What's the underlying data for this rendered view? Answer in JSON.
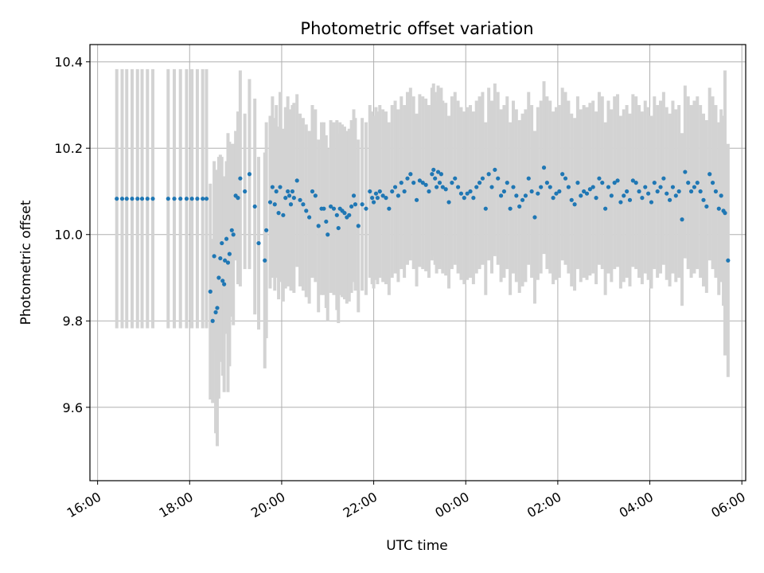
{
  "chart_data": {
    "type": "scatter",
    "title": "Photometric offset variation",
    "xlabel": "UTC time",
    "ylabel": "Photometric offset",
    "x_ticks": [
      "16:00",
      "18:00",
      "20:00",
      "22:00",
      "00:00",
      "02:00",
      "04:00",
      "06:00"
    ],
    "y_ticks": [
      "9.6",
      "9.8",
      "10.0",
      "10.2",
      "10.4"
    ],
    "x_range": [
      "15:50",
      "06:05"
    ],
    "ylim": [
      9.43,
      10.44
    ],
    "grid": true,
    "marker_color": "#1f77b4",
    "errorbar_color": "#d3d3d3",
    "points": [
      [
        "16:25",
        10.083,
        0.3
      ],
      [
        "16:32",
        10.083,
        0.3
      ],
      [
        "16:38",
        10.083,
        0.3
      ],
      [
        "16:45",
        10.083,
        0.3
      ],
      [
        "16:52",
        10.083,
        0.3
      ],
      [
        "16:58",
        10.083,
        0.3
      ],
      [
        "17:05",
        10.083,
        0.3
      ],
      [
        "17:12",
        10.083,
        0.3
      ],
      [
        "17:32",
        10.083,
        0.3
      ],
      [
        "17:40",
        10.083,
        0.3
      ],
      [
        "17:48",
        10.083,
        0.3
      ],
      [
        "17:56",
        10.083,
        0.3
      ],
      [
        "18:03",
        10.083,
        0.3
      ],
      [
        "18:10",
        10.083,
        0.3
      ],
      [
        "18:17",
        10.083,
        0.3
      ],
      [
        "18:22",
        10.083,
        0.3
      ],
      [
        "18:27",
        9.868,
        0.25
      ],
      [
        "18:30",
        9.8,
        0.19
      ],
      [
        "18:32",
        9.95,
        0.22
      ],
      [
        "18:34",
        9.82,
        0.28
      ],
      [
        "18:36",
        9.83,
        0.32
      ],
      [
        "18:38",
        9.9,
        0.28
      ],
      [
        "18:40",
        9.945,
        0.24
      ],
      [
        "18:42",
        9.98,
        0.2
      ],
      [
        "18:43",
        9.893,
        0.22
      ],
      [
        "18:45",
        9.885,
        0.25
      ],
      [
        "18:46",
        9.94,
        0.17
      ],
      [
        "18:48",
        9.99,
        0.18
      ],
      [
        "18:50",
        9.935,
        0.3
      ],
      [
        "18:52",
        9.955,
        0.26
      ],
      [
        "18:55",
        10.01,
        0.2
      ],
      [
        "18:57",
        10.0,
        0.21
      ],
      [
        "19:00",
        10.09,
        0.15
      ],
      [
        "19:03",
        10.085,
        0.2
      ],
      [
        "19:06",
        10.13,
        0.25
      ],
      [
        "19:12",
        10.1,
        0.18
      ],
      [
        "19:18",
        10.14,
        0.22
      ],
      [
        "19:25",
        10.065,
        0.25
      ],
      [
        "19:30",
        9.98,
        0.2
      ],
      [
        "19:38",
        9.94,
        0.25
      ],
      [
        "19:40",
        10.01,
        0.25
      ],
      [
        "19:45",
        10.075,
        0.2
      ],
      [
        "19:48",
        10.11,
        0.21
      ],
      [
        "19:51",
        10.07,
        0.2
      ],
      [
        "19:53",
        10.1,
        0.2
      ],
      [
        "19:56",
        10.05,
        0.2
      ],
      [
        "19:58",
        10.11,
        0.22
      ],
      [
        "20:02",
        10.045,
        0.2
      ],
      [
        "20:05",
        10.085,
        0.21
      ],
      [
        "20:08",
        10.1,
        0.22
      ],
      [
        "20:10",
        10.09,
        0.2
      ],
      [
        "20:12",
        10.07,
        0.2
      ],
      [
        "20:14",
        10.1,
        0.2
      ],
      [
        "20:16",
        10.085,
        0.22
      ],
      [
        "20:20",
        10.125,
        0.2
      ],
      [
        "20:24",
        10.08,
        0.2
      ],
      [
        "20:28",
        10.07,
        0.2
      ],
      [
        "20:32",
        10.055,
        0.2
      ],
      [
        "20:36",
        10.04,
        0.2
      ],
      [
        "20:40",
        10.1,
        0.2
      ],
      [
        "20:44",
        10.09,
        0.2
      ],
      [
        "20:48",
        10.02,
        0.2
      ],
      [
        "20:52",
        10.06,
        0.2
      ],
      [
        "20:55",
        10.06,
        0.2
      ],
      [
        "20:58",
        10.03,
        0.2
      ],
      [
        "21:00",
        10.0,
        0.2
      ],
      [
        "21:04",
        10.065,
        0.2
      ],
      [
        "21:08",
        10.06,
        0.2
      ],
      [
        "21:12",
        10.045,
        0.22
      ],
      [
        "21:14",
        10.015,
        0.22
      ],
      [
        "21:16",
        10.06,
        0.2
      ],
      [
        "21:19",
        10.055,
        0.2
      ],
      [
        "21:22",
        10.05,
        0.2
      ],
      [
        "21:25",
        10.04,
        0.2
      ],
      [
        "21:28",
        10.045,
        0.2
      ],
      [
        "21:31",
        10.065,
        0.2
      ],
      [
        "21:34",
        10.09,
        0.2
      ],
      [
        "21:36",
        10.07,
        0.2
      ],
      [
        "21:40",
        10.02,
        0.2
      ],
      [
        "21:45",
        10.07,
        0.2
      ],
      [
        "21:50",
        10.06,
        0.2
      ],
      [
        "21:55",
        10.1,
        0.2
      ],
      [
        "21:58",
        10.085,
        0.2
      ],
      [
        "22:00",
        10.075,
        0.2
      ],
      [
        "22:03",
        10.095,
        0.2
      ],
      [
        "22:05",
        10.085,
        0.2
      ],
      [
        "22:08",
        10.1,
        0.2
      ],
      [
        "22:12",
        10.09,
        0.2
      ],
      [
        "22:16",
        10.085,
        0.2
      ],
      [
        "22:20",
        10.06,
        0.2
      ],
      [
        "22:24",
        10.1,
        0.2
      ],
      [
        "22:28",
        10.11,
        0.2
      ],
      [
        "22:32",
        10.09,
        0.2
      ],
      [
        "22:36",
        10.12,
        0.2
      ],
      [
        "22:40",
        10.1,
        0.2
      ],
      [
        "22:44",
        10.13,
        0.2
      ],
      [
        "22:48",
        10.14,
        0.2
      ],
      [
        "22:52",
        10.12,
        0.2
      ],
      [
        "22:56",
        10.08,
        0.2
      ],
      [
        "23:00",
        10.125,
        0.2
      ],
      [
        "23:04",
        10.12,
        0.2
      ],
      [
        "23:08",
        10.115,
        0.2
      ],
      [
        "23:12",
        10.1,
        0.2
      ],
      [
        "23:16",
        10.14,
        0.2
      ],
      [
        "23:18",
        10.15,
        0.2
      ],
      [
        "23:20",
        10.13,
        0.2
      ],
      [
        "23:22",
        10.11,
        0.2
      ],
      [
        "23:24",
        10.145,
        0.2
      ],
      [
        "23:26",
        10.12,
        0.2
      ],
      [
        "23:28",
        10.14,
        0.2
      ],
      [
        "23:30",
        10.11,
        0.2
      ],
      [
        "23:34",
        10.105,
        0.2
      ],
      [
        "23:38",
        10.075,
        0.2
      ],
      [
        "23:42",
        10.12,
        0.2
      ],
      [
        "23:46",
        10.13,
        0.2
      ],
      [
        "23:50",
        10.11,
        0.2
      ],
      [
        "23:54",
        10.095,
        0.2
      ],
      [
        "23:58",
        10.085,
        0.2
      ],
      [
        "00:02",
        10.095,
        0.2
      ],
      [
        "00:06",
        10.1,
        0.2
      ],
      [
        "00:10",
        10.085,
        0.2
      ],
      [
        "00:14",
        10.11,
        0.2
      ],
      [
        "00:18",
        10.12,
        0.2
      ],
      [
        "00:22",
        10.13,
        0.2
      ],
      [
        "00:26",
        10.06,
        0.2
      ],
      [
        "00:30",
        10.14,
        0.2
      ],
      [
        "00:34",
        10.11,
        0.2
      ],
      [
        "00:38",
        10.15,
        0.2
      ],
      [
        "00:42",
        10.13,
        0.2
      ],
      [
        "00:46",
        10.09,
        0.2
      ],
      [
        "00:50",
        10.1,
        0.2
      ],
      [
        "00:54",
        10.12,
        0.2
      ],
      [
        "00:58",
        10.06,
        0.2
      ],
      [
        "01:02",
        10.11,
        0.2
      ],
      [
        "01:06",
        10.09,
        0.2
      ],
      [
        "01:10",
        10.065,
        0.2
      ],
      [
        "01:14",
        10.08,
        0.2
      ],
      [
        "01:18",
        10.09,
        0.2
      ],
      [
        "01:22",
        10.13,
        0.2
      ],
      [
        "01:26",
        10.1,
        0.2
      ],
      [
        "01:30",
        10.04,
        0.2
      ],
      [
        "01:34",
        10.095,
        0.2
      ],
      [
        "01:38",
        10.11,
        0.2
      ],
      [
        "01:42",
        10.155,
        0.2
      ],
      [
        "01:46",
        10.12,
        0.2
      ],
      [
        "01:50",
        10.11,
        0.2
      ],
      [
        "01:54",
        10.085,
        0.2
      ],
      [
        "01:58",
        10.095,
        0.2
      ],
      [
        "02:02",
        10.1,
        0.2
      ],
      [
        "02:06",
        10.14,
        0.2
      ],
      [
        "02:10",
        10.13,
        0.2
      ],
      [
        "02:14",
        10.11,
        0.2
      ],
      [
        "02:18",
        10.08,
        0.2
      ],
      [
        "02:22",
        10.07,
        0.2
      ],
      [
        "02:26",
        10.12,
        0.2
      ],
      [
        "02:30",
        10.09,
        0.2
      ],
      [
        "02:34",
        10.1,
        0.2
      ],
      [
        "02:38",
        10.095,
        0.2
      ],
      [
        "02:42",
        10.105,
        0.2
      ],
      [
        "02:46",
        10.11,
        0.2
      ],
      [
        "02:50",
        10.085,
        0.2
      ],
      [
        "02:54",
        10.13,
        0.2
      ],
      [
        "02:58",
        10.12,
        0.2
      ],
      [
        "03:02",
        10.06,
        0.2
      ],
      [
        "03:06",
        10.11,
        0.2
      ],
      [
        "03:10",
        10.09,
        0.2
      ],
      [
        "03:14",
        10.12,
        0.2
      ],
      [
        "03:18",
        10.125,
        0.2
      ],
      [
        "03:22",
        10.075,
        0.2
      ],
      [
        "03:26",
        10.09,
        0.2
      ],
      [
        "03:30",
        10.1,
        0.2
      ],
      [
        "03:34",
        10.08,
        0.2
      ],
      [
        "03:38",
        10.125,
        0.2
      ],
      [
        "03:42",
        10.12,
        0.2
      ],
      [
        "03:46",
        10.1,
        0.2
      ],
      [
        "03:50",
        10.085,
        0.2
      ],
      [
        "03:54",
        10.11,
        0.2
      ],
      [
        "03:58",
        10.095,
        0.2
      ],
      [
        "04:02",
        10.075,
        0.2
      ],
      [
        "04:06",
        10.12,
        0.2
      ],
      [
        "04:10",
        10.1,
        0.2
      ],
      [
        "04:14",
        10.11,
        0.2
      ],
      [
        "04:18",
        10.13,
        0.2
      ],
      [
        "04:22",
        10.095,
        0.2
      ],
      [
        "04:26",
        10.08,
        0.2
      ],
      [
        "04:30",
        10.11,
        0.2
      ],
      [
        "04:34",
        10.09,
        0.2
      ],
      [
        "04:38",
        10.1,
        0.2
      ],
      [
        "04:42",
        10.035,
        0.2
      ],
      [
        "04:46",
        10.145,
        0.2
      ],
      [
        "04:50",
        10.12,
        0.2
      ],
      [
        "04:54",
        10.1,
        0.2
      ],
      [
        "04:58",
        10.11,
        0.2
      ],
      [
        "05:02",
        10.12,
        0.2
      ],
      [
        "05:06",
        10.1,
        0.2
      ],
      [
        "05:10",
        10.08,
        0.2
      ],
      [
        "05:14",
        10.065,
        0.2
      ],
      [
        "05:18",
        10.14,
        0.2
      ],
      [
        "05:22",
        10.12,
        0.2
      ],
      [
        "05:26",
        10.1,
        0.2
      ],
      [
        "05:30",
        10.06,
        0.2
      ],
      [
        "05:33",
        10.09,
        0.2
      ],
      [
        "05:36",
        10.055,
        0.22
      ],
      [
        "05:38",
        10.05,
        0.33
      ],
      [
        "05:42",
        9.94,
        0.27
      ]
    ]
  }
}
